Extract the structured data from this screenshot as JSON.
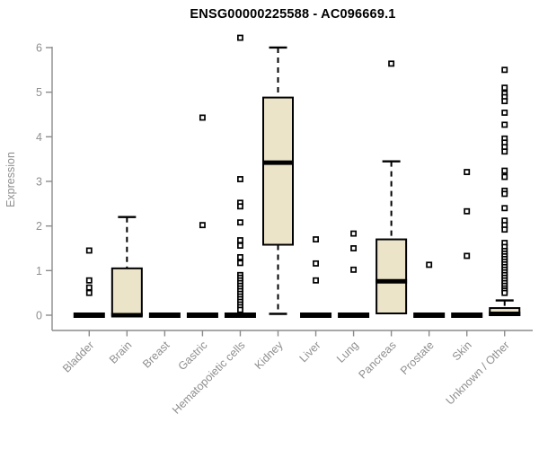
{
  "page": {
    "background": "#ffffff"
  },
  "colors": {
    "box_fill": "#EBE4C9",
    "box_border": "#000000",
    "median": "#000000",
    "whisker": "#000000",
    "outlier_fill": "#ffffff",
    "outlier_border": "#000000",
    "axis": "#8b8b8b",
    "tick_label": "#8f8f8f",
    "title": "#000000"
  },
  "chart_data": {
    "type": "boxplot",
    "title": "ENSG00000225588 - AC096669.1",
    "xlabel": "",
    "ylabel": "Expression",
    "ylim": [
      0,
      6
    ],
    "yticks": [
      0,
      1,
      2,
      3,
      4,
      5,
      6
    ],
    "grid": false,
    "legend": "none",
    "categories": [
      "Bladder",
      "Brain",
      "Breast",
      "Gastric",
      "Hematopoietic cells",
      "Kidney",
      "Liver",
      "Lung",
      "Pancreas",
      "Prostate",
      "Skin",
      "Unknown / Other"
    ],
    "series": [
      {
        "category": "Bladder",
        "q1": 0,
        "median": 0,
        "q3": 0,
        "whisker_low": 0,
        "whisker_high": 0,
        "outliers": [
          1.45,
          0.78,
          0.62,
          0.5
        ]
      },
      {
        "category": "Brain",
        "q1": 0,
        "median": 0,
        "q3": 1.05,
        "whisker_low": 0,
        "whisker_high": 2.2,
        "outliers": []
      },
      {
        "category": "Breast",
        "q1": 0,
        "median": 0,
        "q3": 0,
        "whisker_low": 0,
        "whisker_high": 0,
        "outliers": []
      },
      {
        "category": "Gastric",
        "q1": 0,
        "median": 0,
        "q3": 0,
        "whisker_low": 0,
        "whisker_high": 0,
        "outliers": [
          4.43,
          2.02
        ]
      },
      {
        "category": "Hematopoietic cells",
        "q1": 0,
        "median": 0,
        "q3": 0,
        "whisker_low": 0,
        "whisker_high": 0,
        "outliers": [
          6.22,
          3.05,
          2.52,
          2.44,
          2.08,
          1.68,
          1.56,
          1.3,
          1.17,
          0.9,
          0.84,
          0.78,
          0.72,
          0.66,
          0.6,
          0.54,
          0.48,
          0.42,
          0.36,
          0.3,
          0.24,
          0.18,
          0.12
        ]
      },
      {
        "category": "Kidney",
        "q1": 1.58,
        "median": 3.42,
        "q3": 4.88,
        "whisker_low": 0.03,
        "whisker_high": 6.0,
        "outliers": []
      },
      {
        "category": "Liver",
        "q1": 0,
        "median": 0,
        "q3": 0,
        "whisker_low": 0,
        "whisker_high": 0,
        "outliers": [
          1.7,
          1.16,
          0.78
        ]
      },
      {
        "category": "Lung",
        "q1": 0,
        "median": 0,
        "q3": 0,
        "whisker_low": 0,
        "whisker_high": 0,
        "outliers": [
          1.83,
          1.5,
          1.02
        ]
      },
      {
        "category": "Pancreas",
        "q1": 0.04,
        "median": 0.76,
        "q3": 1.7,
        "whisker_low": 0.04,
        "whisker_high": 3.45,
        "outliers": [
          5.64
        ]
      },
      {
        "category": "Prostate",
        "q1": 0,
        "median": 0,
        "q3": 0,
        "whisker_low": 0,
        "whisker_high": 0,
        "outliers": [
          1.13
        ]
      },
      {
        "category": "Skin",
        "q1": 0,
        "median": 0,
        "q3": 0,
        "whisker_low": 0,
        "whisker_high": 0,
        "outliers": [
          3.21,
          2.33,
          1.33
        ]
      },
      {
        "category": "Unknown / Other",
        "q1": 0,
        "median": 0.03,
        "q3": 0.16,
        "whisker_low": 0,
        "whisker_high": 0.33,
        "outliers": [
          5.5,
          5.1,
          4.97,
          4.89,
          4.8,
          4.54,
          4.27,
          3.96,
          3.87,
          3.77,
          3.67,
          3.24,
          3.1,
          2.79,
          2.72,
          2.4,
          2.12,
          2.02,
          1.92,
          1.62,
          1.53,
          1.44,
          1.38,
          1.32,
          1.26,
          1.2,
          1.14,
          1.08,
          1.02,
          0.96,
          0.9,
          0.84,
          0.78,
          0.72,
          0.66,
          0.6,
          0.55,
          0.5
        ]
      }
    ]
  }
}
